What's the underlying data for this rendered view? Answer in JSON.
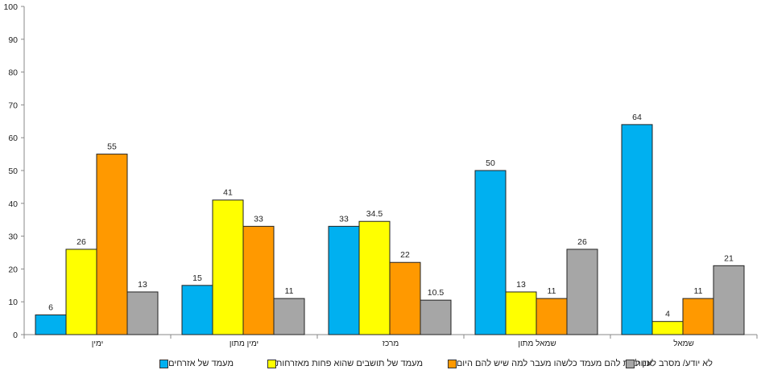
{
  "chart_data": {
    "type": "bar",
    "categories": [
      "ימין",
      "ימין מתון",
      "מרכז",
      "שמאל מתון",
      "שמאל"
    ],
    "series": [
      {
        "name": "מעמד של אזרחים",
        "color": "#00B0F0",
        "values": [
          6,
          15,
          33,
          50,
          64
        ]
      },
      {
        "name": "מעמד של תושבים שהוא פחות מאזרחות",
        "color": "#FFFF00",
        "values": [
          26,
          41,
          34.5,
          13,
          4
        ]
      },
      {
        "name": "אין לתת להם מעמד כלשהו מעבר למה שיש להם היום",
        "color": "#FF9900",
        "values": [
          55,
          33,
          22,
          11,
          11
        ]
      },
      {
        "name": "לא יודע/ מסרב לענות",
        "color": "#A6A6A6",
        "values": [
          13,
          11,
          10.5,
          26,
          21
        ]
      }
    ],
    "ylim": [
      0,
      100
    ],
    "yticks": [
      0,
      10,
      20,
      30,
      40,
      50,
      60,
      70,
      80,
      90,
      100
    ],
    "grid": false,
    "legend_position": "bottom",
    "data_labels": true
  }
}
